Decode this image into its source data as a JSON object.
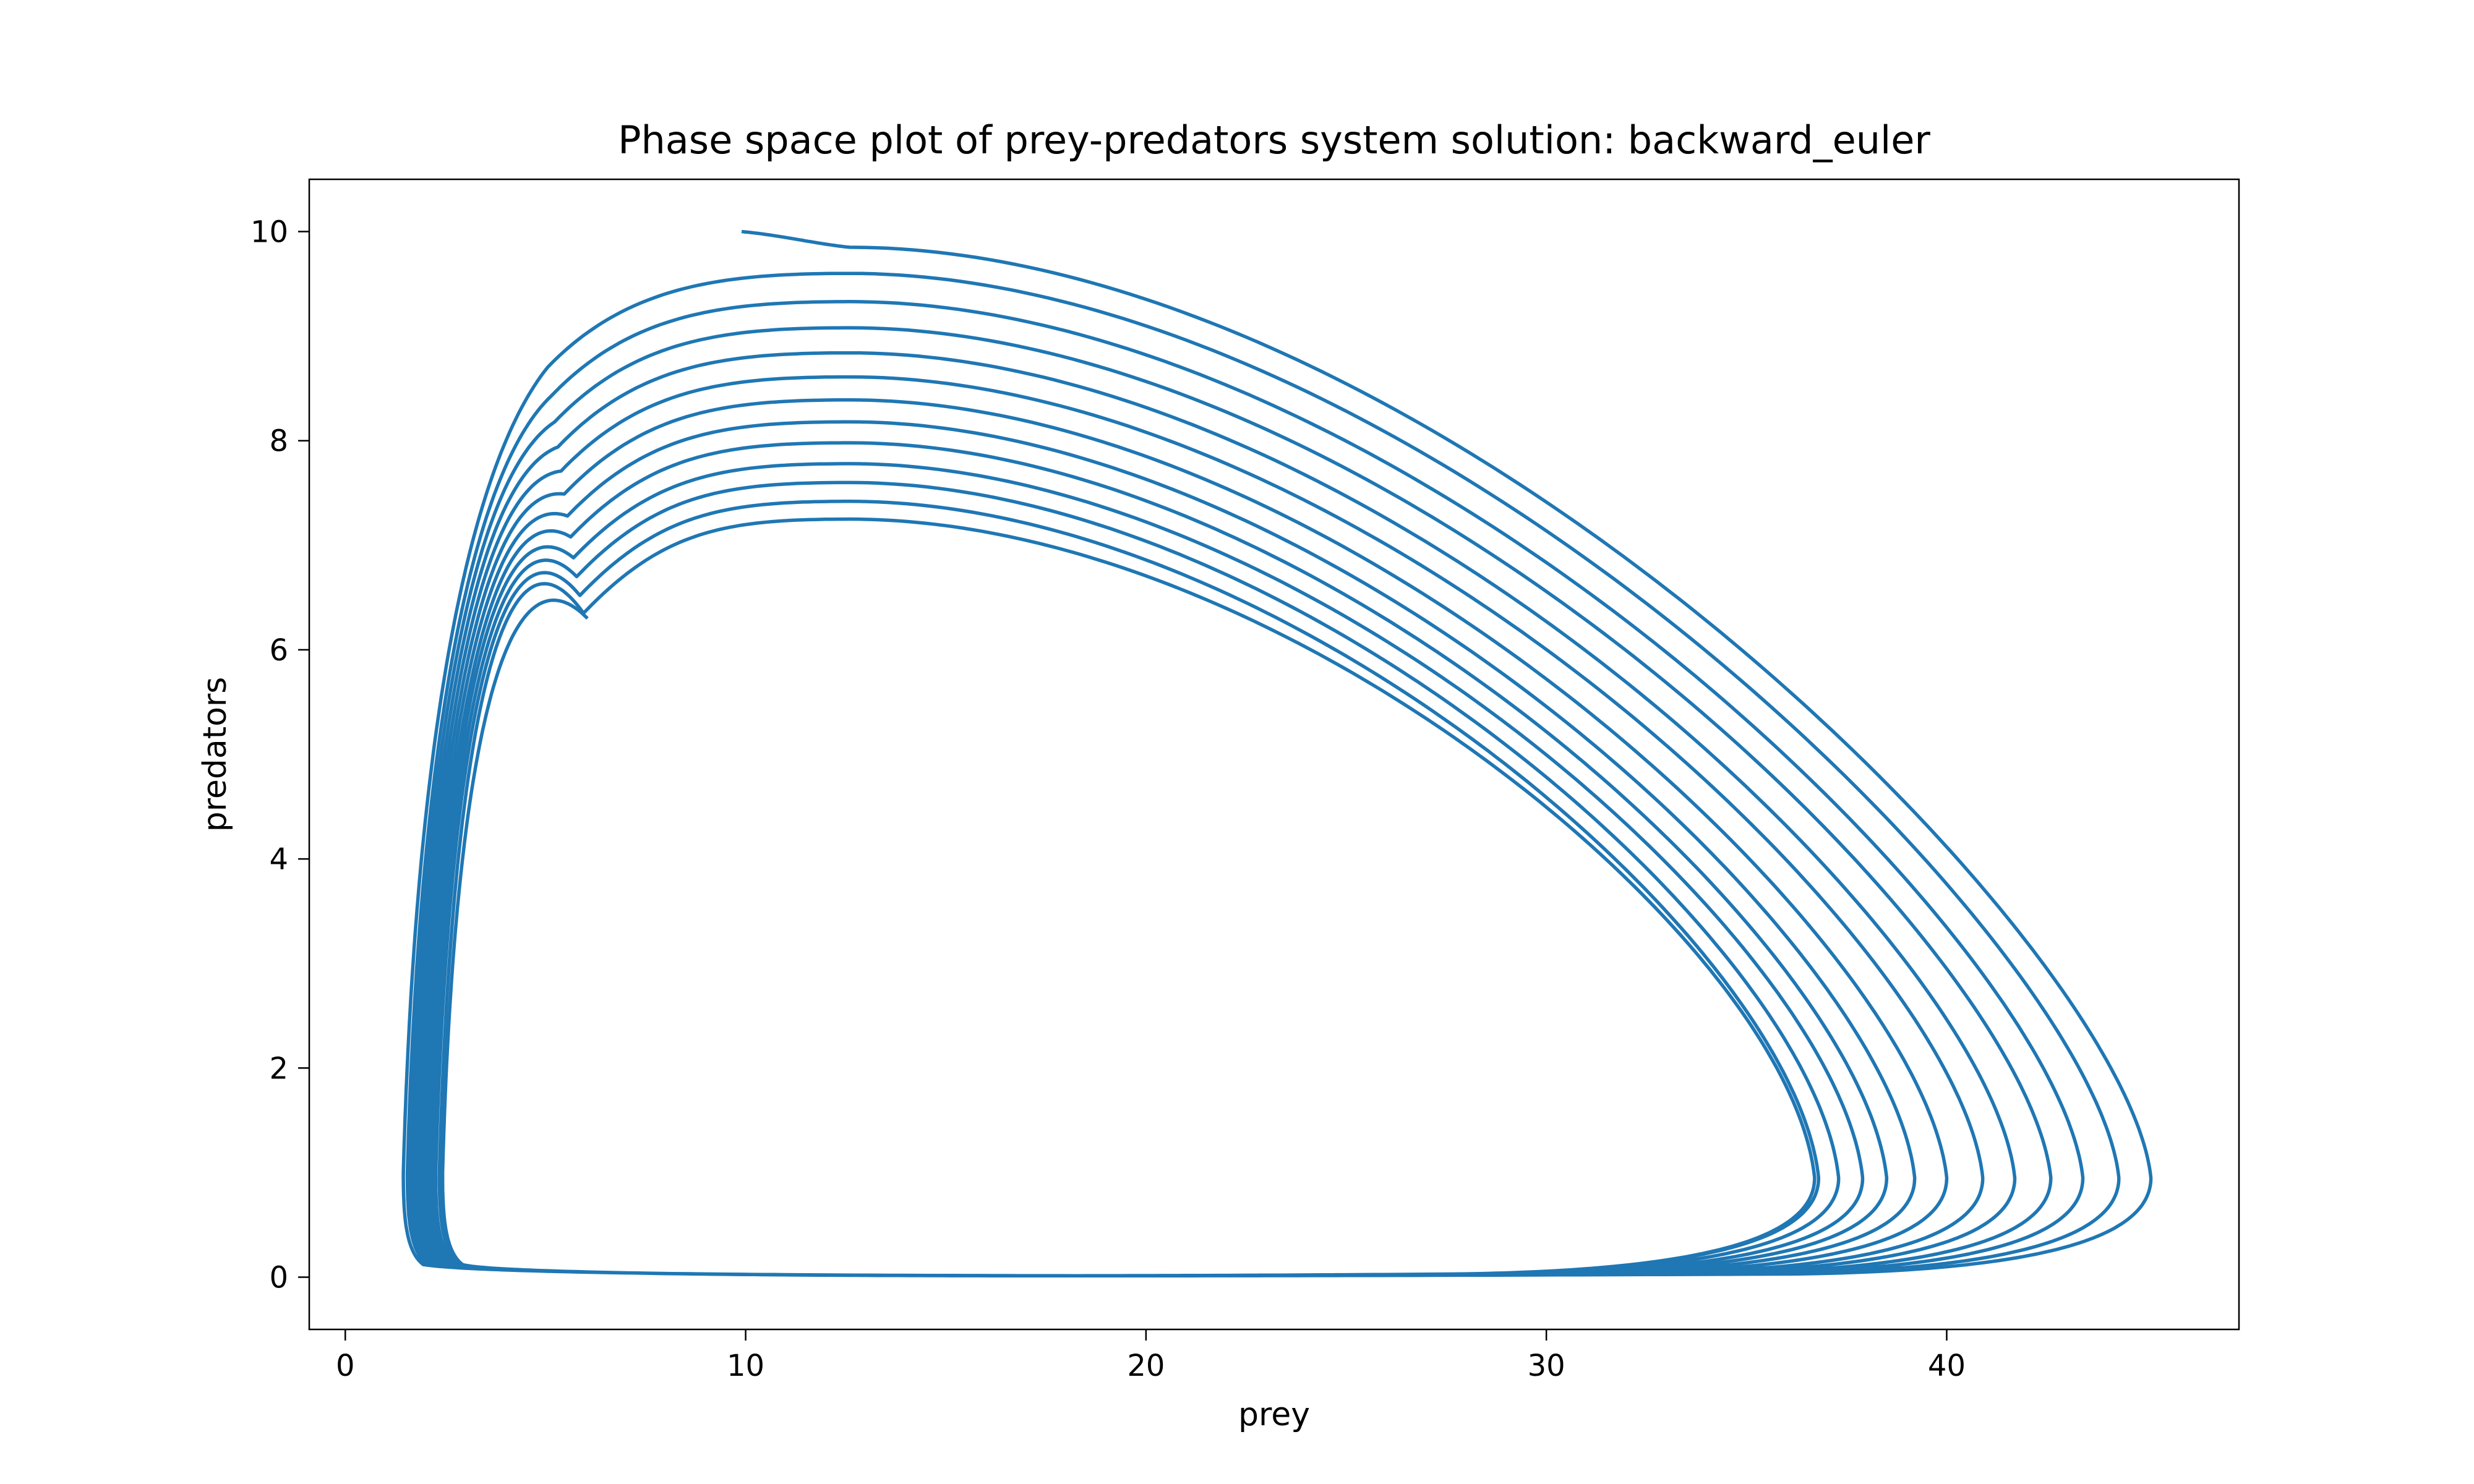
{
  "chart_data": {
    "type": "line",
    "title": "Phase space plot of prey-predators system solution: backward_euler",
    "xlabel": "prey",
    "ylabel": "predators",
    "xlim": [
      -0.9,
      47.3
    ],
    "ylim": [
      -0.5,
      10.5
    ],
    "xticks": [
      0,
      10,
      20,
      30,
      40
    ],
    "yticks": [
      0,
      2,
      4,
      6,
      8,
      10
    ],
    "grid": false,
    "legend": "none",
    "line_color": "#1f77b4",
    "start_point": [
      9.9,
      10.0
    ],
    "orbits": [
      {
        "x_min": 1.35,
        "x_max": 45.1,
        "y_peak": 9.85
      },
      {
        "x_min": 1.45,
        "x_max": 44.3,
        "y_peak": 9.6
      },
      {
        "x_min": 1.55,
        "x_max": 43.4,
        "y_peak": 9.33
      },
      {
        "x_min": 1.63,
        "x_max": 42.6,
        "y_peak": 9.08
      },
      {
        "x_min": 1.71,
        "x_max": 41.7,
        "y_peak": 8.84
      },
      {
        "x_min": 1.79,
        "x_max": 40.9,
        "y_peak": 8.61
      },
      {
        "x_min": 1.87,
        "x_max": 40.0,
        "y_peak": 8.39
      },
      {
        "x_min": 1.95,
        "x_max": 39.2,
        "y_peak": 8.18
      },
      {
        "x_min": 2.03,
        "x_max": 38.5,
        "y_peak": 7.98
      },
      {
        "x_min": 2.1,
        "x_max": 37.9,
        "y_peak": 7.78
      },
      {
        "x_min": 2.18,
        "x_max": 37.3,
        "y_peak": 7.6
      },
      {
        "x_min": 2.26,
        "x_max": 36.8,
        "y_peak": 7.42
      },
      {
        "x_min": 2.35,
        "x_max": 36.7,
        "y_peak": 7.25
      }
    ]
  }
}
